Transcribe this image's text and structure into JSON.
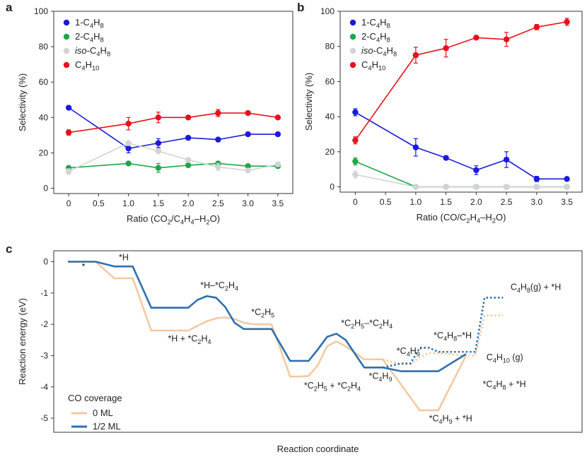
{
  "chart_data": [
    {
      "panel": "a",
      "type": "line",
      "xlabel": "Ratio (CO2/C4H4-H2O)",
      "xlabel_rich": [
        [
          "Ratio (CO",
          ""
        ],
        [
          "2",
          "sub"
        ],
        [
          "/C",
          ""
        ],
        [
          "4",
          "sub"
        ],
        [
          "H",
          ""
        ],
        [
          "4",
          "sub"
        ],
        [
          "–H",
          ""
        ],
        [
          "2",
          "sub"
        ],
        [
          "O)",
          ""
        ]
      ],
      "ylabel": "Selectivity (%)",
      "xlim": [
        -0.25,
        3.75
      ],
      "ylim": [
        -3,
        100
      ],
      "xticks": [
        0,
        0.5,
        1.0,
        1.5,
        2.0,
        2.5,
        3.0,
        3.5
      ],
      "xtick_labels": [
        "0",
        "0.5",
        "1.0",
        "1.5",
        "2.0",
        "2.5",
        "3.0",
        "3.5"
      ],
      "yticks": [
        0,
        20,
        40,
        60,
        80,
        100
      ],
      "x": [
        0,
        1.0,
        1.5,
        2.0,
        2.5,
        3.0,
        3.5
      ],
      "legend_position": "top-left",
      "series": [
        {
          "name": "1-C4H8",
          "name_rich": [
            [
              "1-C",
              ""
            ],
            [
              "4",
              "sub"
            ],
            [
              "H",
              ""
            ],
            [
              "8",
              "sub"
            ]
          ],
          "color": "#1a1adb",
          "values": [
            45.5,
            22.5,
            25.5,
            28.5,
            27.5,
            30.5,
            30.5
          ],
          "errors": [
            0,
            2.5,
            2.5,
            1,
            1,
            0.5,
            0.5
          ]
        },
        {
          "name": "2-C4H8",
          "name_rich": [
            [
              "2-C",
              ""
            ],
            [
              "4",
              "sub"
            ],
            [
              "H",
              ""
            ],
            [
              "8",
              "sub"
            ]
          ],
          "color": "#1aa84a",
          "values": [
            11.5,
            14,
            11.5,
            13,
            14,
            12.5,
            12.5
          ],
          "errors": [
            0.5,
            1,
            2.5,
            1,
            1,
            0.5,
            0.5
          ]
        },
        {
          "name": "iso-C4H8",
          "name_rich": [
            [
              "iso",
              "italic"
            ],
            [
              "-C",
              ""
            ],
            [
              "4",
              "sub"
            ],
            [
              "H",
              ""
            ],
            [
              "8",
              "sub"
            ]
          ],
          "color": "#d3d3d3",
          "values": [
            9.5,
            25.5,
            21,
            16,
            12,
            10,
            13.5
          ],
          "errors": [
            1.5,
            1,
            1.5,
            1,
            2,
            1,
            1
          ]
        },
        {
          "name": "C4H10",
          "name_rich": [
            [
              "C",
              ""
            ],
            [
              "4",
              "sub"
            ],
            [
              "H",
              ""
            ],
            [
              "10",
              "sub"
            ]
          ],
          "color": "#e8101a",
          "values": [
            31.5,
            36.5,
            40,
            40,
            42.5,
            42.5,
            40
          ],
          "errors": [
            1.5,
            3.5,
            3,
            1,
            2,
            1,
            0.5
          ]
        }
      ]
    },
    {
      "panel": "b",
      "type": "line",
      "xlabel": "Ratio (CO/C2H4-H2O)",
      "xlabel_rich": [
        [
          "Ratio (CO/C",
          ""
        ],
        [
          "2",
          "sub"
        ],
        [
          "H",
          ""
        ],
        [
          "4",
          "sub"
        ],
        [
          "–H",
          ""
        ],
        [
          "2",
          "sub"
        ],
        [
          "O)",
          ""
        ]
      ],
      "ylabel": "Selectivity (%)",
      "xlim": [
        -0.25,
        3.75
      ],
      "ylim": [
        -3,
        100
      ],
      "xticks": [
        0,
        0.5,
        1.0,
        1.5,
        2.0,
        2.5,
        3.0,
        3.5
      ],
      "xtick_labels": [
        "0",
        "0.5",
        "1.0",
        "1.5",
        "2.0",
        "2.5",
        "3.0",
        "3.5"
      ],
      "yticks": [
        0,
        20,
        40,
        60,
        80,
        100
      ],
      "x": [
        0,
        1.0,
        1.5,
        2.0,
        2.5,
        3.0,
        3.5
      ],
      "legend_position": "top-left",
      "series": [
        {
          "name": "1-C4H8",
          "name_rich": [
            [
              "1-C",
              ""
            ],
            [
              "4",
              "sub"
            ],
            [
              "H",
              ""
            ],
            [
              "8",
              "sub"
            ]
          ],
          "color": "#1a1adb",
          "values": [
            42.5,
            22.5,
            16.5,
            9.5,
            15.5,
            4.5,
            4.5
          ],
          "errors": [
            2,
            5,
            1,
            2.5,
            4.5,
            1.5,
            0.5
          ]
        },
        {
          "name": "2-C4H8",
          "name_rich": [
            [
              "2-C",
              ""
            ],
            [
              "4",
              "sub"
            ],
            [
              "H",
              ""
            ],
            [
              "8",
              "sub"
            ]
          ],
          "color": "#1aa84a",
          "values": [
            14.5,
            0,
            0,
            0,
            0,
            0,
            0
          ],
          "errors": [
            2,
            0,
            0,
            0,
            0,
            0,
            0
          ]
        },
        {
          "name": "iso-C4H8",
          "name_rich": [
            [
              "iso",
              "italic"
            ],
            [
              "-C",
              ""
            ],
            [
              "4",
              "sub"
            ],
            [
              "H",
              ""
            ],
            [
              "8",
              "sub"
            ]
          ],
          "color": "#d3d3d3",
          "values": [
            7,
            0,
            0,
            0,
            0,
            0,
            0
          ],
          "errors": [
            2,
            0,
            0,
            0,
            0,
            0,
            0
          ]
        },
        {
          "name": "C4H10",
          "name_rich": [
            [
              "C",
              ""
            ],
            [
              "4",
              "sub"
            ],
            [
              "H",
              ""
            ],
            [
              "10",
              "sub"
            ]
          ],
          "color": "#e8101a",
          "values": [
            26.5,
            75,
            79,
            85,
            84,
            91,
            94
          ],
          "errors": [
            2,
            4.5,
            5,
            1,
            4,
            1.5,
            2
          ]
        }
      ]
    },
    {
      "panel": "c",
      "type": "line",
      "xlabel": "Reaction coordinate",
      "ylabel": "Reaction energy (eV)",
      "ylim": [
        -5.45,
        0.35
      ],
      "yticks": [
        0,
        -1,
        -2,
        -3,
        -4,
        -5
      ],
      "ytick_labels": [
        "0",
        "-1",
        "-2",
        "-3",
        "-4",
        "-5"
      ],
      "xlim": [
        0,
        54
      ],
      "legend_title": "CO coverage",
      "legend_position": "bottom-left",
      "series": [
        {
          "name": "0 ML",
          "color": "#f2c9a3",
          "segments": [
            {
              "style": "solid",
              "x": [
                0,
                3,
                5,
                7,
                9,
                11,
                13,
                15,
                16,
                17,
                18,
                19,
                20,
                22,
                24,
                25,
                26,
                27,
                28,
                29,
                30,
                32,
                34,
                38,
                40,
                43
              ],
              "y": [
                0,
                0,
                -0.53,
                -0.53,
                -2.2,
                -2.2,
                -2.2,
                -1.9,
                -1.81,
                -1.78,
                -1.83,
                -1.95,
                -2.0,
                -2.0,
                -3.67,
                -3.67,
                -3.65,
                -3.3,
                -2.7,
                -2.55,
                -2.7,
                -3.12,
                -3.12,
                -4.75,
                -4.75,
                -3.0
              ]
            },
            {
              "style": "dotted",
              "x": [
                34,
                36,
                37,
                38,
                39,
                40,
                43,
                44,
                45,
                47
              ],
              "y": [
                -3.12,
                -3.28,
                -3.28,
                -3.05,
                -2.92,
                -2.92,
                -3.0,
                -3.0,
                -1.72,
                -1.72
              ]
            }
          ]
        },
        {
          "name": "1/2 ML",
          "color": "#2f6fad",
          "segments": [
            {
              "style": "solid",
              "x": [
                0,
                3,
                5,
                7,
                9,
                11,
                13,
                14,
                15,
                16,
                17,
                18,
                19,
                20,
                22,
                24,
                25,
                26,
                27,
                28,
                29,
                30,
                32,
                34,
                36,
                38,
                40,
                43
              ],
              "y": [
                0,
                0,
                -0.15,
                -0.15,
                -1.47,
                -1.47,
                -1.47,
                -1.22,
                -1.1,
                -1.15,
                -1.45,
                -1.95,
                -2.15,
                -2.15,
                -2.15,
                -3.17,
                -3.17,
                -3.17,
                -2.8,
                -2.4,
                -2.3,
                -2.5,
                -3.38,
                -3.38,
                -3.5,
                -3.5,
                -3.5,
                -2.95
              ]
            },
            {
              "style": "dotted",
              "x": [
                34,
                36,
                37,
                38,
                39,
                40,
                43,
                44,
                45,
                47
              ],
              "y": [
                -3.38,
                -3.25,
                -3.25,
                -2.75,
                -2.75,
                -2.88,
                -2.88,
                -2.88,
                -1.15,
                -1.15
              ]
            }
          ]
        }
      ],
      "annotations": [
        {
          "rich": [
            [
              "*",
              ""
            ]
          ],
          "x": 1.5,
          "y": -0.25
        },
        {
          "rich": [
            [
              "*H",
              ""
            ]
          ],
          "x": 5.5,
          "y": 0.05
        },
        {
          "rich": [
            [
              "*H–*C",
              ""
            ],
            [
              "2",
              "sub"
            ],
            [
              "H",
              ""
            ],
            [
              "4",
              "sub"
            ]
          ],
          "x": 14.3,
          "y": -0.85
        },
        {
          "rich": [
            [
              "*H + *C",
              ""
            ],
            [
              "2",
              "sub"
            ],
            [
              "H",
              ""
            ],
            [
              "4",
              "sub"
            ]
          ],
          "x": 10.8,
          "y": -2.55
        },
        {
          "rich": [
            [
              "*C",
              ""
            ],
            [
              "2",
              "sub"
            ],
            [
              "H",
              ""
            ],
            [
              "5",
              "sub"
            ]
          ],
          "x": 19.8,
          "y": -1.7
        },
        {
          "rich": [
            [
              "*C",
              ""
            ],
            [
              "2",
              "sub"
            ],
            [
              "H",
              ""
            ],
            [
              "5",
              "sub"
            ],
            [
              "–*C",
              ""
            ],
            [
              "2",
              "sub"
            ],
            [
              "H",
              ""
            ],
            [
              "4",
              "sub"
            ]
          ],
          "x": 29.5,
          "y": -2.05
        },
        {
          "rich": [
            [
              "*C",
              ""
            ],
            [
              "2",
              "sub"
            ],
            [
              "H",
              ""
            ],
            [
              "5",
              "sub"
            ],
            [
              " + *C",
              ""
            ],
            [
              "2",
              "sub"
            ],
            [
              "H",
              ""
            ],
            [
              "4",
              "sub"
            ]
          ],
          "x": 25.5,
          "y": -4.05
        },
        {
          "rich": [
            [
              "*C",
              ""
            ],
            [
              "4",
              "sub"
            ],
            [
              "H",
              ""
            ],
            [
              "9",
              "sub"
            ]
          ],
          "x": 32.5,
          "y": -3.75
        },
        {
          "rich": [
            [
              "*C",
              ""
            ],
            [
              "4",
              "sub"
            ],
            [
              "H",
              ""
            ],
            [
              "9",
              "sub"
            ],
            [
              "'",
              ""
            ]
          ],
          "x": 35.5,
          "y": -2.95
        },
        {
          "rich": [
            [
              "*C",
              ""
            ],
            [
              "4",
              "sub"
            ],
            [
              "H",
              ""
            ],
            [
              "8",
              "sub"
            ],
            [
              "–*H",
              ""
            ]
          ],
          "x": 39.5,
          "y": -2.45
        },
        {
          "rich": [
            [
              "*C",
              ""
            ],
            [
              "4",
              "sub"
            ],
            [
              "H",
              ""
            ],
            [
              "9",
              "sub"
            ],
            [
              " + *H",
              ""
            ]
          ],
          "x": 39.0,
          "y": -5.1
        },
        {
          "rich": [
            [
              "C",
              ""
            ],
            [
              "4",
              "sub"
            ],
            [
              "H",
              ""
            ],
            [
              "10",
              "sub"
            ],
            [
              " (g)",
              ""
            ]
          ],
          "x": 45.2,
          "y": -3.15
        },
        {
          "rich": [
            [
              "*C",
              ""
            ],
            [
              "4",
              "sub"
            ],
            [
              "H",
              ""
            ],
            [
              "8",
              "sub"
            ],
            [
              " + *H",
              ""
            ]
          ],
          "x": 44.8,
          "y": -4.0
        },
        {
          "rich": [
            [
              "C",
              ""
            ],
            [
              "4",
              "sub"
            ],
            [
              "H",
              ""
            ],
            [
              "8",
              "sub"
            ],
            [
              "(g) + *H",
              ""
            ]
          ],
          "x": 47.8,
          "y": -0.9
        }
      ]
    }
  ]
}
